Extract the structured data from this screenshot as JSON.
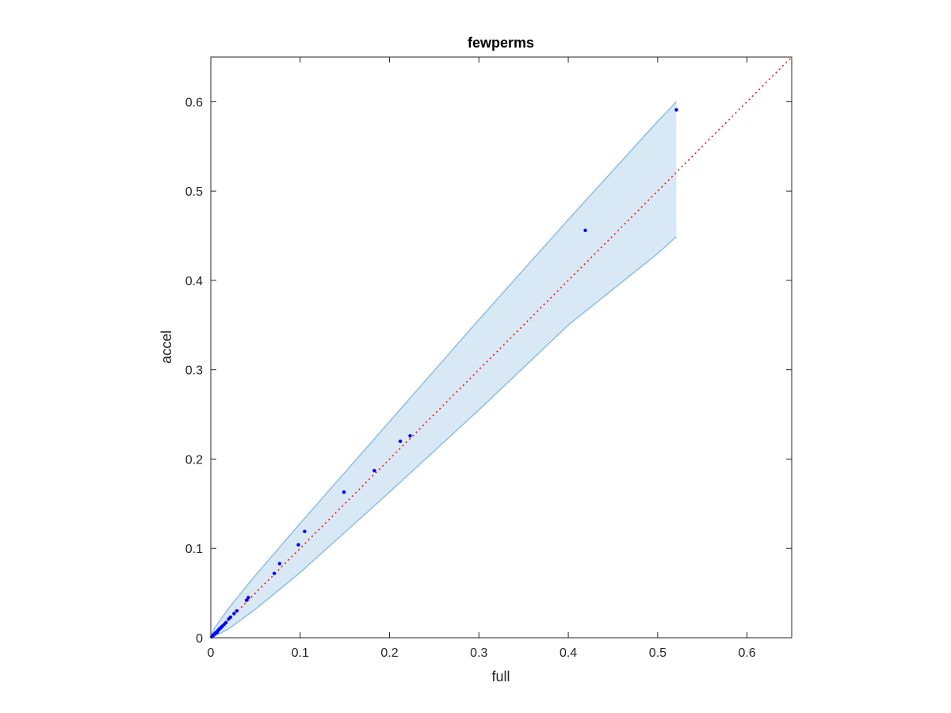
{
  "chart_data": {
    "type": "scatter",
    "title": "fewperms",
    "xlabel": "full",
    "ylabel": "accel",
    "xlim": [
      0,
      0.65
    ],
    "ylim": [
      0,
      0.65
    ],
    "xticks": [
      0,
      0.1,
      0.2,
      0.3,
      0.4,
      0.5,
      0.6
    ],
    "yticks": [
      0,
      0.1,
      0.2,
      0.3,
      0.4,
      0.5,
      0.6
    ],
    "xtick_labels": [
      "0",
      "0.1",
      "0.2",
      "0.3",
      "0.4",
      "0.5",
      "0.6"
    ],
    "ytick_labels": [
      "0",
      "0.1",
      "0.2",
      "0.3",
      "0.4",
      "0.5",
      "0.6"
    ],
    "grid": false,
    "box": true,
    "series": [
      {
        "kind": "points",
        "color": "#0000ff",
        "x": [
          0.001,
          0.002,
          0.003,
          0.004,
          0.005,
          0.006,
          0.007,
          0.008,
          0.009,
          0.01,
          0.011,
          0.012,
          0.013,
          0.015,
          0.017,
          0.02,
          0.022,
          0.026,
          0.029,
          0.04,
          0.042,
          0.071,
          0.077,
          0.098,
          0.105,
          0.149,
          0.183,
          0.212,
          0.223,
          0.419,
          0.521
        ],
        "y": [
          0.001,
          0.002,
          0.003,
          0.004,
          0.005,
          0.006,
          0.006,
          0.008,
          0.009,
          0.01,
          0.011,
          0.012,
          0.013,
          0.015,
          0.017,
          0.021,
          0.023,
          0.027,
          0.03,
          0.042,
          0.045,
          0.072,
          0.083,
          0.104,
          0.119,
          0.163,
          0.187,
          0.22,
          0.226,
          0.456,
          0.591
        ]
      },
      {
        "kind": "reference-line",
        "color": "#ff0000",
        "style": "dotted",
        "x": [
          0,
          0.65
        ],
        "y": [
          0,
          0.65
        ]
      },
      {
        "kind": "band",
        "fill": "#d9e8f5",
        "edge": "#8cc0e2",
        "x": [
          0,
          0.005,
          0.02,
          0.05,
          0.1,
          0.2,
          0.3,
          0.4,
          0.5,
          0.521
        ],
        "upper": [
          0.002,
          0.012,
          0.033,
          0.07,
          0.128,
          0.242,
          0.356,
          0.468,
          0.578,
          0.6
        ],
        "lower": [
          0,
          0.002,
          0.01,
          0.032,
          0.073,
          0.163,
          0.255,
          0.35,
          0.43,
          0.449
        ]
      }
    ]
  }
}
